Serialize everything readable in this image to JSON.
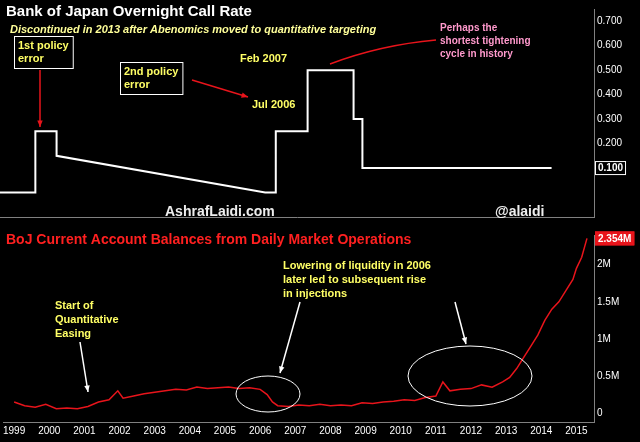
{
  "chart_data": [
    {
      "type": "line",
      "title": "Bank of Japan Overnight Call Rate",
      "subtitle": "Discontinued in 2013 after Abenomics moved to quantitative targeting",
      "series": [
        {
          "color": "#ffffff",
          "x": [
            1998.7,
            1999.7,
            1999.7,
            2000.3,
            2000.3,
            2006.2,
            2006.5,
            2006.5,
            2007.4,
            2007.4,
            2008.7,
            2008.7,
            2008.95,
            2008.95,
            2014.3
          ],
          "values": [
            0,
            0,
            0.25,
            0.25,
            0.15,
            0,
            0,
            0.25,
            0.25,
            0.5,
            0.5,
            0.3,
            0.3,
            0.1,
            0.1
          ]
        }
      ],
      "xlim": [
        1998.7,
        2015.5
      ],
      "ylim": [
        -0.1,
        0.75
      ],
      "yticks": [
        {
          "value": 0.2,
          "label": "0.200"
        },
        {
          "value": 0.3,
          "label": "0.300"
        },
        {
          "value": 0.4,
          "label": "0.400"
        },
        {
          "value": 0.5,
          "label": "0.500"
        },
        {
          "value": 0.6,
          "label": "0.600"
        },
        {
          "value": 0.7,
          "label": "0.700"
        }
      ],
      "highlight": {
        "value": 0.1,
        "label": "0.100"
      },
      "annotations": [
        [
          "1st policy",
          "error"
        ],
        [
          "2nd policy",
          "error"
        ],
        "Feb 2007",
        "Jul 2006",
        [
          "Perhaps the",
          "shortest tightening",
          "cycle in history"
        ]
      ],
      "grid": false,
      "tick_labels": "y"
    },
    {
      "type": "line",
      "title": "BoJ Current Account Balances from Daily Market Operations",
      "series": [
        {
          "color": "#e8141b",
          "x": [
            1999.0,
            1999.3,
            1999.6,
            1999.9,
            2000.2,
            2000.5,
            2000.8,
            2001.1,
            2001.4,
            2001.7,
            2001.95,
            2002.1,
            2002.4,
            2002.7,
            2003.0,
            2003.3,
            2003.6,
            2003.9,
            2004.2,
            2004.5,
            2004.8,
            2005.1,
            2005.4,
            2005.7,
            2006.0,
            2006.2,
            2006.35,
            2006.5,
            2006.8,
            2007.1,
            2007.4,
            2007.7,
            2008.0,
            2008.3,
            2008.6,
            2008.9,
            2009.2,
            2009.5,
            2009.8,
            2010.1,
            2010.4,
            2010.7,
            2011.0,
            2011.2,
            2011.4,
            2011.7,
            2012.0,
            2012.3,
            2012.6,
            2012.9,
            2013.1,
            2013.3,
            2013.5,
            2013.7,
            2013.9,
            2014.1,
            2014.3,
            2014.5,
            2014.7,
            2014.9,
            2015.0,
            2015.15,
            2015.3
          ],
          "values": [
            150000,
            100000,
            80000,
            120000,
            60000,
            70000,
            60000,
            90000,
            150000,
            180000,
            300000,
            200000,
            230000,
            260000,
            280000,
            300000,
            320000,
            310000,
            350000,
            330000,
            340000,
            350000,
            330000,
            340000,
            320000,
            250000,
            150000,
            100000,
            90000,
            110000,
            100000,
            120000,
            100000,
            110000,
            100000,
            140000,
            130000,
            150000,
            160000,
            180000,
            170000,
            210000,
            230000,
            420000,
            300000,
            320000,
            330000,
            380000,
            350000,
            420000,
            480000,
            600000,
            750000,
            900000,
            1050000,
            1250000,
            1400000,
            1500000,
            1650000,
            1800000,
            1950000,
            2100000,
            2354000
          ]
        }
      ],
      "xlim": [
        1998.7,
        2015.5
      ],
      "xticks": [
        1999,
        2000,
        2001,
        2002,
        2003,
        2004,
        2005,
        2006,
        2007,
        2008,
        2009,
        2010,
        2011,
        2012,
        2013,
        2014,
        2015
      ],
      "ylim": [
        -120000,
        2400000
      ],
      "yticks": [
        0,
        {
          "value": 500000,
          "label": "0.5M"
        },
        {
          "value": 1000000,
          "label": "1M"
        },
        {
          "value": 1500000,
          "label": "1.5M"
        },
        {
          "value": 2000000,
          "label": "2M"
        }
      ],
      "highlight": {
        "value": 2354000,
        "label": "2.354M"
      },
      "annotations": [
        [
          "Start of",
          "Quantitative",
          "Easing"
        ],
        [
          "Lowering of liquidity in 2006",
          "later led to subsequent rise",
          "in injections"
        ]
      ],
      "grid": false
    }
  ],
  "watermarks": [
    "AshrafLaidi.com",
    "@alaidi"
  ]
}
